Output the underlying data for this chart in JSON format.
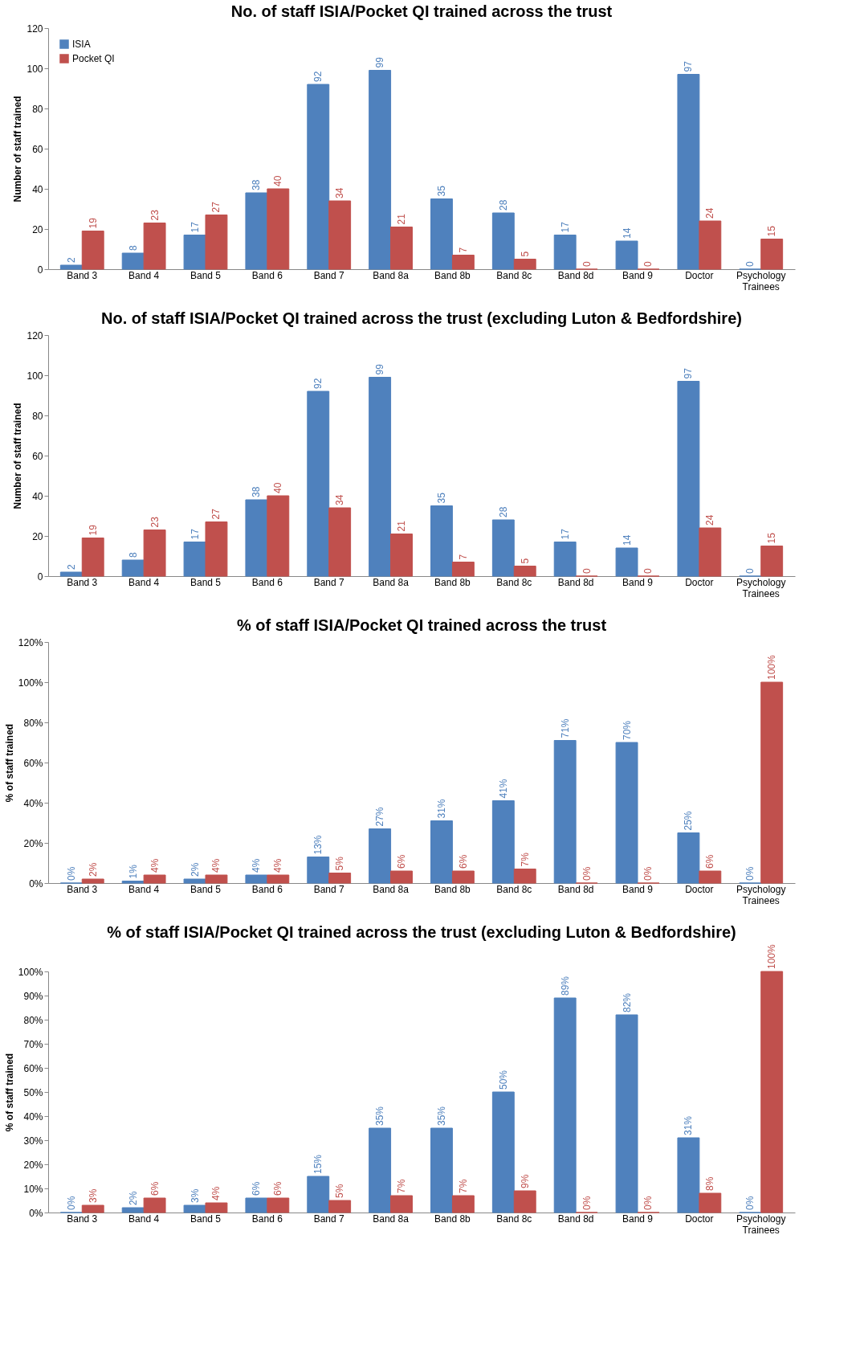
{
  "chart_data": [
    {
      "type": "bar",
      "title": "No. of staff ISIA/Pocket QI trained across the trust",
      "ylabel": "Number of staff trained",
      "categories": [
        "Band 3",
        "Band 4",
        "Band 5",
        "Band 6",
        "Band 7",
        "Band 8a",
        "Band 8b",
        "Band 8c",
        "Band 8d",
        "Band 9",
        "Doctor",
        "Psychology Trainees"
      ],
      "series": [
        {
          "name": "ISIA",
          "color": "#4f81bd",
          "values": [
            2,
            8,
            17,
            38,
            92,
            99,
            35,
            28,
            17,
            14,
            97,
            0
          ]
        },
        {
          "name": "Pocket QI",
          "color": "#c0504d",
          "values": [
            19,
            23,
            27,
            40,
            34,
            21,
            7,
            5,
            0,
            0,
            24,
            15
          ]
        }
      ],
      "ylim": [
        0,
        120
      ],
      "yticks": [
        0,
        20,
        40,
        60,
        80,
        100,
        120
      ],
      "data_labels": true,
      "legend": "top left",
      "grid": false
    },
    {
      "type": "bar",
      "title": "No. of staff ISIA/Pocket QI trained across the trust (excluding Luton & Bedfordshire)",
      "ylabel": "Number of staff trained",
      "categories": [
        "Band 3",
        "Band 4",
        "Band 5",
        "Band 6",
        "Band 7",
        "Band 8a",
        "Band 8b",
        "Band 8c",
        "Band 8d",
        "Band 9",
        "Doctor",
        "Psychology Trainees"
      ],
      "series": [
        {
          "name": "ISIA",
          "color": "#4f81bd",
          "values": [
            2,
            8,
            17,
            38,
            92,
            99,
            35,
            28,
            17,
            14,
            97,
            0
          ]
        },
        {
          "name": "Pocket QI",
          "color": "#c0504d",
          "values": [
            19,
            23,
            27,
            40,
            34,
            21,
            7,
            5,
            0,
            0,
            24,
            15
          ]
        }
      ],
      "ylim": [
        0,
        120
      ],
      "yticks": [
        0,
        20,
        40,
        60,
        80,
        100,
        120
      ],
      "data_labels": true,
      "legend": "top left",
      "grid": false
    },
    {
      "type": "bar",
      "title": "% of staff ISIA/Pocket QI trained across the trust",
      "ylabel": "% of staff trained",
      "categories": [
        "Band 3",
        "Band 4",
        "Band 5",
        "Band 6",
        "Band 7",
        "Band 8a",
        "Band 8b",
        "Band 8c",
        "Band 8d",
        "Band 9",
        "Doctor",
        "Psychology Trainees"
      ],
      "series": [
        {
          "name": "ISIA",
          "color": "#4f81bd",
          "values": [
            0,
            1,
            2,
            4,
            13,
            27,
            31,
            41,
            71,
            70,
            25,
            0
          ],
          "value_labels": [
            "0%",
            "1%",
            "2%",
            "4%",
            "13%",
            "27%",
            "31%",
            "41%",
            "71%",
            "70%",
            "25%",
            "0%"
          ]
        },
        {
          "name": "Pocket QI",
          "color": "#c0504d",
          "values": [
            2,
            4,
            4,
            4,
            5,
            6,
            6,
            7,
            0,
            0,
            6,
            100
          ],
          "value_labels": [
            "2%",
            "4%",
            "4%",
            "4%",
            "5%",
            "6%",
            "6%",
            "7%",
            "0%",
            "0%",
            "6%",
            "100%"
          ]
        }
      ],
      "ylim": [
        0,
        120
      ],
      "yticks": [
        {
          "value": 0,
          "label": "0%"
        },
        {
          "value": 20,
          "label": "20%"
        },
        {
          "value": 40,
          "label": "40%"
        },
        {
          "value": 60,
          "label": "60%"
        },
        {
          "value": 80,
          "label": "80%"
        },
        {
          "value": 100,
          "label": "100%"
        },
        {
          "value": 120,
          "label": "120%"
        }
      ],
      "legend": "top left",
      "grid": false
    },
    {
      "type": "bar",
      "title": "% of staff ISIA/Pocket QI trained across the trust (excluding Luton & Bedfordshire)",
      "ylabel": "% of staff trained",
      "categories": [
        "Band 3",
        "Band 4",
        "Band 5",
        "Band 6",
        "Band 7",
        "Band 8a",
        "Band 8b",
        "Band 8c",
        "Band 8d",
        "Band 9",
        "Doctor",
        "Psychology Trainees"
      ],
      "series": [
        {
          "name": "ISIA",
          "color": "#4f81bd",
          "values": [
            0,
            2,
            3,
            6,
            15,
            35,
            35,
            50,
            89,
            82,
            31,
            0
          ],
          "value_labels": [
            "0%",
            "2%",
            "3%",
            "6%",
            "15%",
            "35%",
            "35%",
            "50%",
            "89%",
            "82%",
            "31%",
            "0%"
          ]
        },
        {
          "name": "Pocket QI",
          "color": "#c0504d",
          "values": [
            3,
            6,
            4,
            6,
            5,
            7,
            7,
            9,
            0,
            0,
            8,
            100
          ],
          "value_labels": [
            "3%",
            "6%",
            "4%",
            "6%",
            "5%",
            "7%",
            "7%",
            "9%",
            "0%",
            "0%",
            "8%",
            "100%"
          ]
        }
      ],
      "ylim": [
        0,
        100
      ],
      "yticks": [
        {
          "value": 0,
          "label": "0%"
        },
        {
          "value": 10,
          "label": "10%"
        },
        {
          "value": 20,
          "label": "20%"
        },
        {
          "value": 30,
          "label": "30%"
        },
        {
          "value": 40,
          "label": "40%"
        },
        {
          "value": 50,
          "label": "50%"
        },
        {
          "value": 60,
          "label": "60%"
        },
        {
          "value": 70,
          "label": "70%"
        },
        {
          "value": 80,
          "label": "80%"
        },
        {
          "value": 90,
          "label": "90%"
        },
        {
          "value": 100,
          "label": "100%"
        }
      ],
      "legend": "top left",
      "grid": false
    }
  ]
}
